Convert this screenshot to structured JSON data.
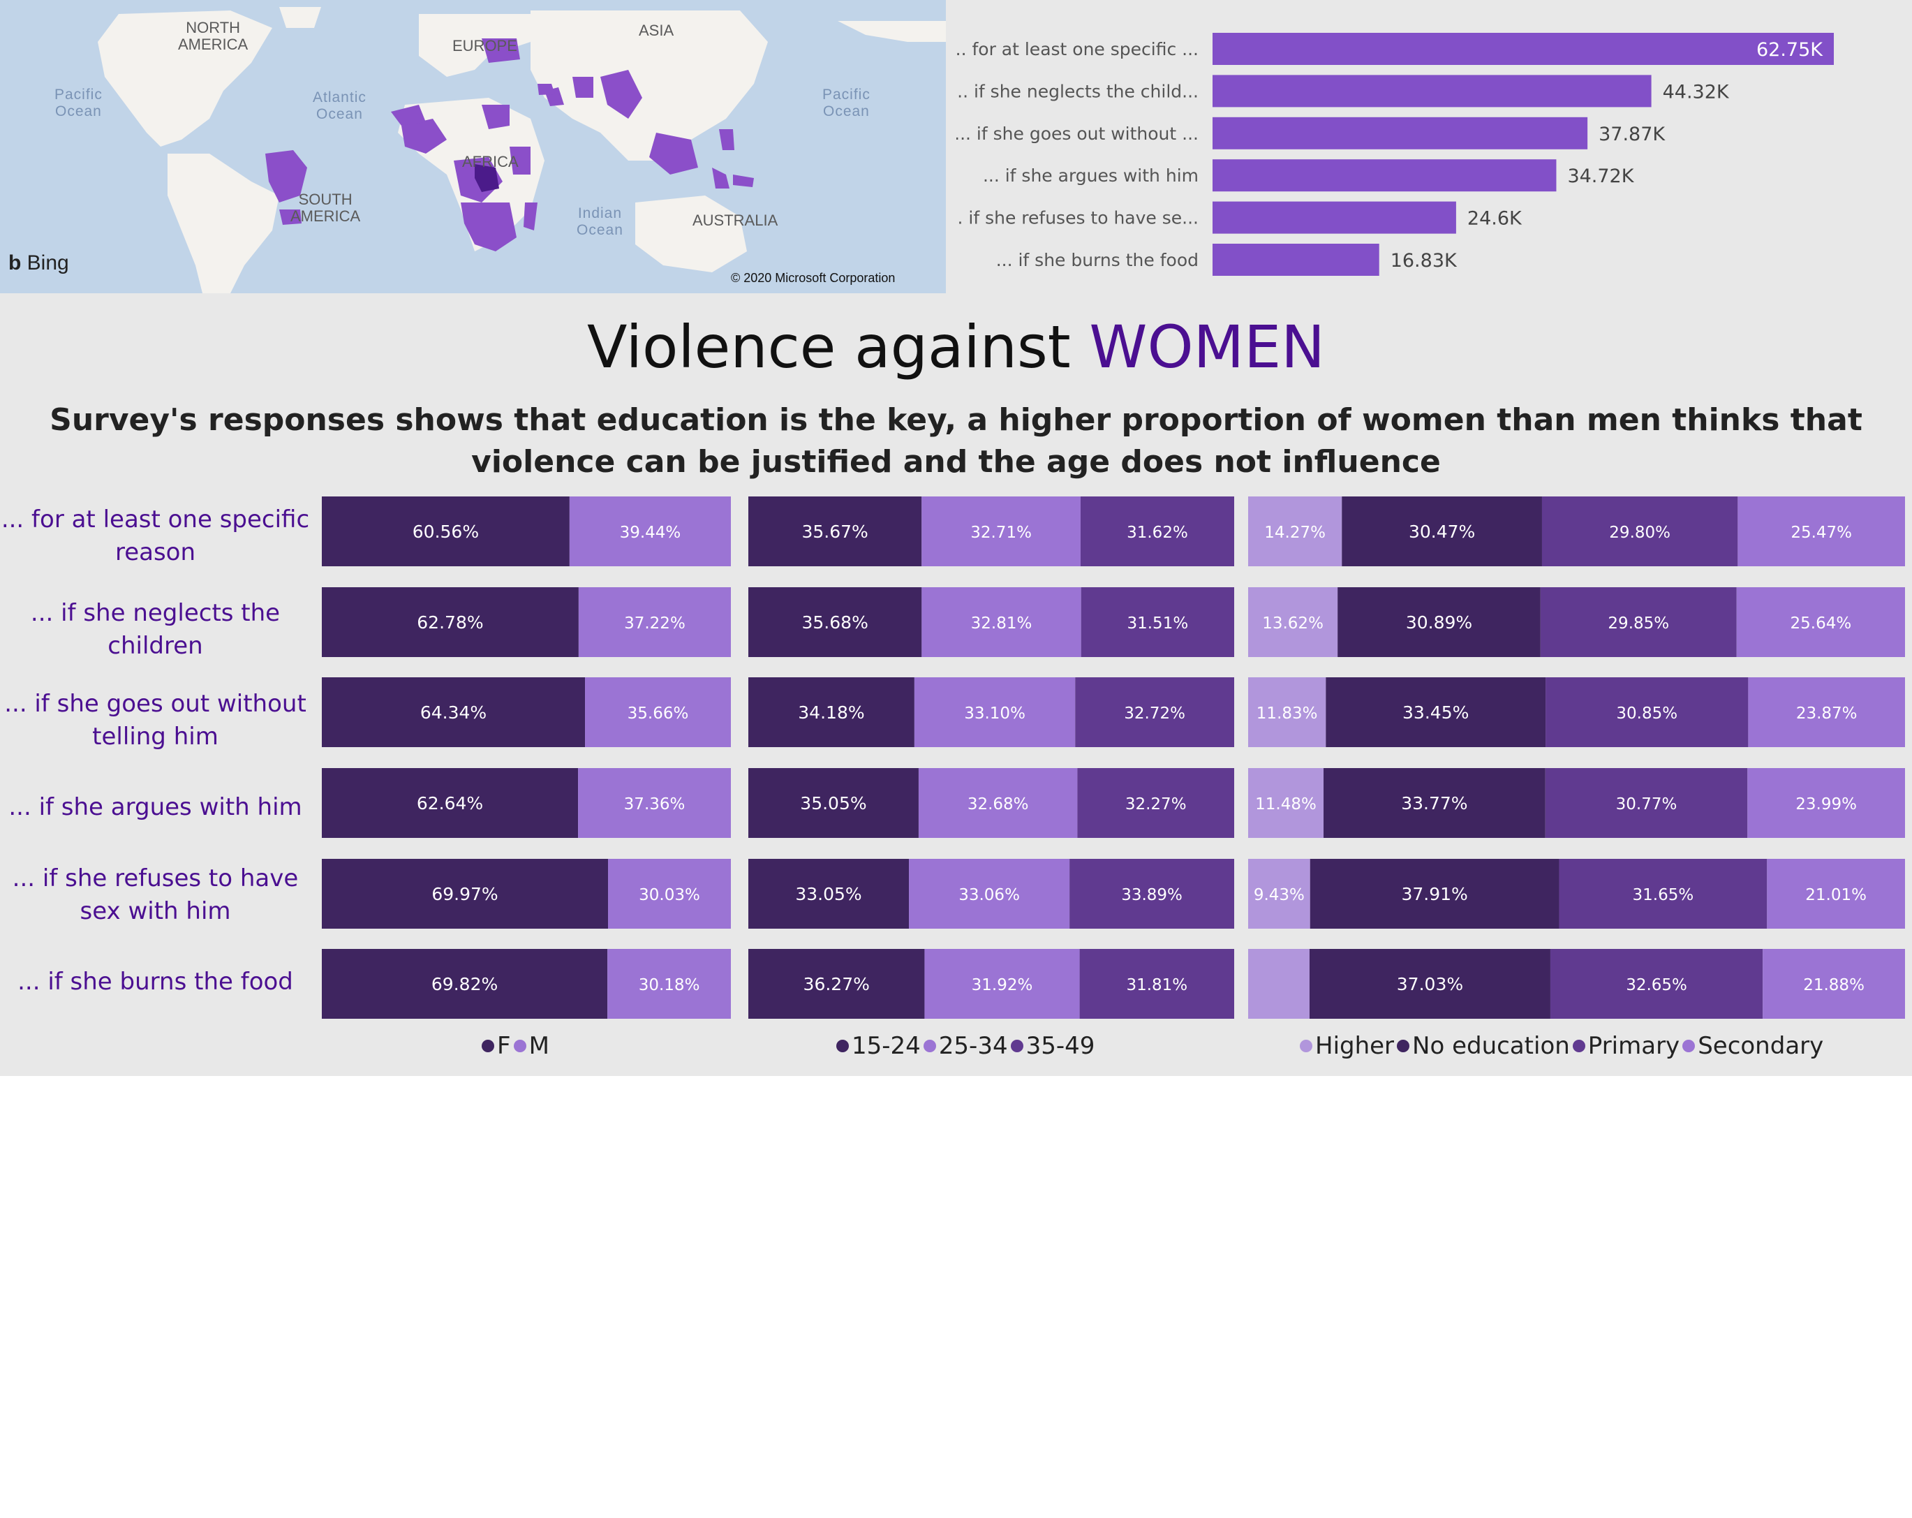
{
  "map": {
    "labels": {
      "north_america": "NORTH\nAMERICA",
      "europe": "EUROPE",
      "asia": "ASIA",
      "pacific_left": "Pacific\nOcean",
      "atlantic": "Atlantic\nOcean",
      "pacific_right": "Pacific\nOcean",
      "africa": "AFRICA",
      "south_america": "SOUTH\nAMERICA",
      "indian": "Indian\nOcean",
      "australia": "AUSTRALIA"
    },
    "brand": "Bing",
    "copyright": "© 2020 Microsoft Corporation",
    "colors": {
      "water": "#c1d4e8",
      "land": "#f4f2ee",
      "highlight": "#8b4fc9",
      "highlight_dark": "#4b1b8a"
    }
  },
  "title": {
    "main": "Violence against ",
    "accent": "WOMEN"
  },
  "subtitle": "Survey's responses shows that education is the key, a higher proportion of women than men thinks that violence can be justified and the age does not influence",
  "row_labels": [
    "... for at least one specific reason",
    "... if she neglects the children",
    "... if she goes out without telling him",
    "... if she argues with him",
    "... if she refuses to have sex with him",
    "... if she burns the food"
  ],
  "chart_data": [
    {
      "type": "bar",
      "orientation": "horizontal",
      "categories": [
        "... for at least one specific ...",
        "... if she neglects the child...",
        "... if she goes out without ...",
        "... if she argues with him",
        "... if she refuses to have se...",
        "... if she burns the food"
      ],
      "values": [
        62750,
        44320,
        37870,
        34720,
        24600,
        16830
      ],
      "value_labels": [
        "62.75K",
        "44.32K",
        "37.87K",
        "34.72K",
        "24.6K",
        "16.83K"
      ],
      "color": "#8250c8"
    },
    {
      "type": "bar",
      "stacked": "100%",
      "series": [
        {
          "name": "F",
          "color": "#3f2560",
          "values": [
            60.56,
            62.78,
            64.34,
            62.64,
            69.97,
            69.82
          ],
          "labels": [
            "60.56%",
            "62.78%",
            "64.34%",
            "62.64%",
            "69.97%",
            "69.82%"
          ]
        },
        {
          "name": "M",
          "color": "#9b74d4",
          "values": [
            39.44,
            37.22,
            35.66,
            37.36,
            30.03,
            30.18
          ],
          "labels": [
            "39.44%",
            "37.22%",
            "35.66%",
            "37.36%",
            "30.03%",
            "30.18%"
          ]
        }
      ]
    },
    {
      "type": "bar",
      "stacked": "100%",
      "series": [
        {
          "name": "15-24",
          "color": "#3f2560",
          "values": [
            35.67,
            35.68,
            34.18,
            35.05,
            33.05,
            36.27
          ],
          "labels": [
            "35.67%",
            "35.68%",
            "34.18%",
            "35.05%",
            "33.05%",
            "36.27%"
          ]
        },
        {
          "name": "25-34",
          "color": "#9b74d4",
          "values": [
            32.71,
            32.81,
            33.1,
            32.68,
            33.06,
            31.92
          ],
          "labels": [
            "32.71%",
            "32.81%",
            "33.10%",
            "32.68%",
            "33.06%",
            "31.92%"
          ]
        },
        {
          "name": "35-49",
          "color": "#603a90",
          "values": [
            31.62,
            31.51,
            32.72,
            32.27,
            33.89,
            31.81
          ],
          "labels": [
            "31.62%",
            "31.51%",
            "32.72%",
            "32.27%",
            "33.89%",
            "31.81%"
          ]
        }
      ]
    },
    {
      "type": "bar",
      "stacked": "100%",
      "series": [
        {
          "name": "Higher",
          "color": "#b196dc",
          "values": [
            14.27,
            13.62,
            11.83,
            11.48,
            9.43,
            9.44
          ],
          "labels": [
            "14.27%",
            "13.62%",
            "11.83%",
            "11.48%",
            "9.43%",
            ""
          ]
        },
        {
          "name": "No education",
          "color": "#3f2560",
          "values": [
            30.47,
            30.89,
            33.45,
            33.77,
            37.91,
            37.03
          ],
          "labels": [
            "30.47%",
            "30.89%",
            "33.45%",
            "33.77%",
            "37.91%",
            "37.03%"
          ]
        },
        {
          "name": "Primary",
          "color": "#603a90",
          "values": [
            29.8,
            29.85,
            30.85,
            30.77,
            31.65,
            32.65
          ],
          "labels": [
            "29.80%",
            "29.85%",
            "30.85%",
            "30.77%",
            "31.65%",
            "32.65%"
          ]
        },
        {
          "name": "Secondary",
          "color": "#9b74d4",
          "values": [
            25.47,
            25.64,
            23.87,
            23.99,
            21.01,
            21.88
          ],
          "labels": [
            "25.47%",
            "25.64%",
            "23.87%",
            "23.99%",
            "21.01%",
            "21.88%"
          ]
        }
      ]
    }
  ]
}
